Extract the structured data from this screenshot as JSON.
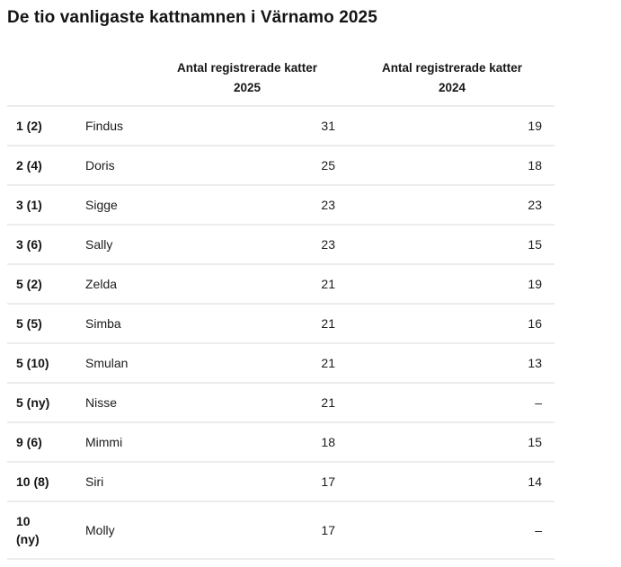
{
  "title": "De tio vanligaste kattnamnen i Värnamo 2025",
  "table": {
    "headers": {
      "rank": "",
      "name": "",
      "count2025": {
        "label": "Antal registrerade katter",
        "year": "2025"
      },
      "count2024": {
        "label": "Antal registrerade katter",
        "year": "2024"
      }
    },
    "rows": [
      {
        "rank": "1 (2)",
        "name": "Findus",
        "count2025": "31",
        "count2024": "19"
      },
      {
        "rank": "2 (4)",
        "name": "Doris",
        "count2025": "25",
        "count2024": "18"
      },
      {
        "rank": "3 (1)",
        "name": "Sigge",
        "count2025": "23",
        "count2024": "23"
      },
      {
        "rank": "3 (6)",
        "name": "Sally",
        "count2025": "23",
        "count2024": "15"
      },
      {
        "rank": "5 (2)",
        "name": "Zelda",
        "count2025": "21",
        "count2024": "19"
      },
      {
        "rank": "5 (5)",
        "name": "Simba",
        "count2025": "21",
        "count2024": "16"
      },
      {
        "rank": "5 (10)",
        "name": "Smulan",
        "count2025": "21",
        "count2024": "13"
      },
      {
        "rank": "5 (ny)",
        "name": "Nisse",
        "count2025": "21",
        "count2024": "–"
      },
      {
        "rank": "9 (6)",
        "name": "Mimmi",
        "count2025": "18",
        "count2024": "15"
      },
      {
        "rank": "10 (8)",
        "name": "Siri",
        "count2025": "17",
        "count2024": "14"
      },
      {
        "rank": "10 (ny)",
        "name": "Molly",
        "count2025": "17",
        "count2024": "–"
      }
    ]
  },
  "chart_data": {
    "type": "table",
    "title": "De tio vanligaste kattnamnen i Värnamo 2025",
    "columns": [
      "",
      "",
      "Antal registrerade katter 2025",
      "Antal registrerade katter 2024"
    ],
    "rows": [
      [
        "1 (2)",
        "Findus",
        31,
        19
      ],
      [
        "2 (4)",
        "Doris",
        25,
        18
      ],
      [
        "3 (1)",
        "Sigge",
        23,
        23
      ],
      [
        "3 (6)",
        "Sally",
        23,
        15
      ],
      [
        "5 (2)",
        "Zelda",
        21,
        19
      ],
      [
        "5 (5)",
        "Simba",
        21,
        16
      ],
      [
        "5 (10)",
        "Smulan",
        21,
        13
      ],
      [
        "5 (ny)",
        "Nisse",
        21,
        "–"
      ],
      [
        "9 (6)",
        "Mimmi",
        18,
        15
      ],
      [
        "10 (8)",
        "Siri",
        17,
        14
      ],
      [
        "10 (ny)",
        "Molly",
        17,
        "–"
      ]
    ]
  },
  "colors": {
    "text": "#1c1c1c",
    "divider": "#ececec",
    "background": "#ffffff"
  }
}
